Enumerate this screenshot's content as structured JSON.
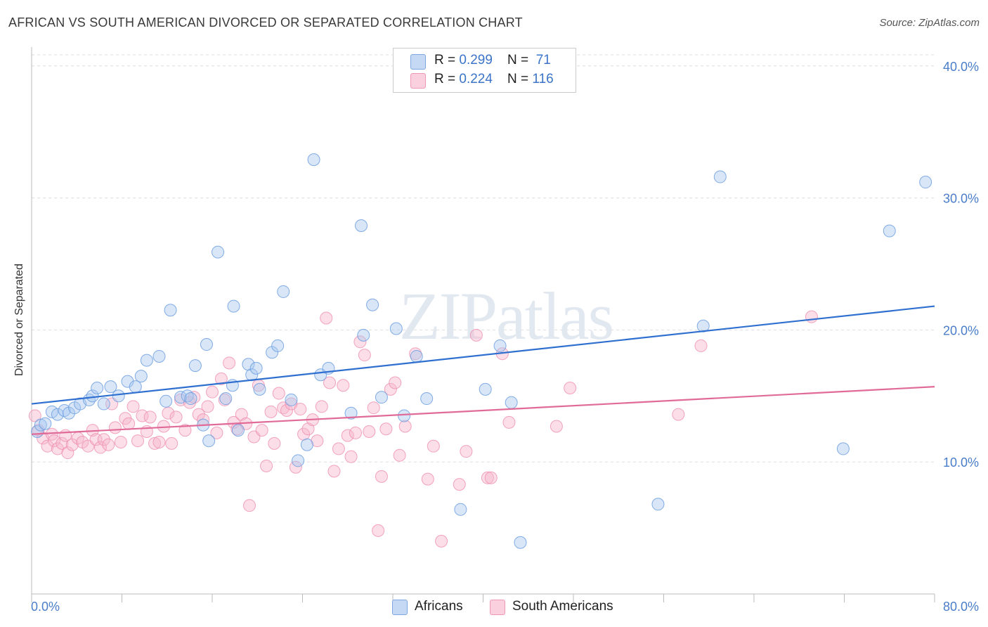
{
  "title": "AFRICAN VS SOUTH AMERICAN DIVORCED OR SEPARATED CORRELATION CHART",
  "source": "Source: ZipAtlas.com",
  "watermark": "ZIPatlas",
  "legend": {
    "rows": [
      {
        "r_label": "R = ",
        "r_value": "0.299",
        "n_label": "N = ",
        "n_value": " 71",
        "color": "#a9c7ef"
      },
      {
        "r_label": "R = ",
        "r_value": "0.224",
        "n_label": "N = ",
        "n_value": "116",
        "color": "#f6b6cc"
      }
    ]
  },
  "bottom_legend": [
    {
      "label": "Africans",
      "color": "#a9c7ef"
    },
    {
      "label": "South Americans",
      "color": "#f6b6cc"
    }
  ],
  "chart_data": {
    "type": "scatter",
    "title": "AFRICAN VS SOUTH AMERICAN DIVORCED OR SEPARATED CORRELATION CHART",
    "xlabel": "",
    "ylabel": "Divorced or Separated",
    "xlim": [
      0,
      80
    ],
    "ylim": [
      0,
      41
    ],
    "x_tick_labels": [
      "0.0%",
      "80.0%"
    ],
    "y_ticks": [
      10,
      20,
      30,
      40
    ],
    "y_tick_labels": [
      "10.0%",
      "20.0%",
      "30.0%",
      "40.0%"
    ],
    "grid": true,
    "legend_position": "top-center",
    "colors": {
      "africans": "#6d9fe0",
      "africans_fill": "#a9c7ef",
      "africans_line": "#2f6fd0",
      "south_americans": "#ef8fb0",
      "south_americans_fill": "#f6b6cc",
      "south_americans_line": "#e06b98"
    },
    "series": [
      {
        "name": "Africans",
        "trend": [
          [
            0,
            14.4
          ],
          [
            80,
            21.8
          ]
        ],
        "points": [
          [
            0.5,
            12.3
          ],
          [
            0.8,
            12.8
          ],
          [
            1.2,
            12.9
          ],
          [
            1.8,
            13.8
          ],
          [
            2.3,
            13.6
          ],
          [
            2.9,
            13.9
          ],
          [
            3.3,
            13.7
          ],
          [
            3.8,
            14.1
          ],
          [
            4.3,
            14.4
          ],
          [
            5.1,
            14.7
          ],
          [
            5.4,
            15.0
          ],
          [
            5.8,
            15.6
          ],
          [
            6.4,
            14.4
          ],
          [
            7.0,
            15.7
          ],
          [
            7.7,
            15.0
          ],
          [
            8.5,
            16.1
          ],
          [
            9.2,
            15.7
          ],
          [
            9.7,
            16.5
          ],
          [
            10.2,
            17.7
          ],
          [
            11.3,
            18.0
          ],
          [
            12.3,
            21.5
          ],
          [
            11.9,
            14.6
          ],
          [
            13.2,
            14.9
          ],
          [
            13.8,
            15.0
          ],
          [
            14.1,
            14.8
          ],
          [
            14.5,
            17.3
          ],
          [
            15.2,
            12.8
          ],
          [
            15.5,
            18.9
          ],
          [
            15.7,
            11.6
          ],
          [
            16.5,
            25.9
          ],
          [
            17.2,
            14.8
          ],
          [
            17.8,
            15.8
          ],
          [
            17.9,
            21.8
          ],
          [
            18.3,
            12.4
          ],
          [
            19.2,
            17.4
          ],
          [
            19.5,
            16.6
          ],
          [
            19.9,
            17.1
          ],
          [
            20.2,
            15.5
          ],
          [
            21.3,
            18.3
          ],
          [
            21.8,
            18.8
          ],
          [
            22.3,
            22.9
          ],
          [
            23.0,
            14.7
          ],
          [
            23.6,
            10.1
          ],
          [
            24.4,
            11.3
          ],
          [
            25.0,
            32.9
          ],
          [
            25.6,
            16.6
          ],
          [
            26.3,
            17.1
          ],
          [
            28.3,
            13.7
          ],
          [
            29.2,
            27.9
          ],
          [
            29.4,
            19.6
          ],
          [
            30.2,
            21.9
          ],
          [
            31.0,
            14.9
          ],
          [
            32.3,
            20.1
          ],
          [
            33.0,
            13.5
          ],
          [
            34.1,
            18.0
          ],
          [
            35.0,
            14.8
          ],
          [
            38.0,
            6.4
          ],
          [
            40.2,
            15.5
          ],
          [
            41.5,
            18.8
          ],
          [
            42.5,
            14.5
          ],
          [
            43.3,
            3.9
          ],
          [
            55.5,
            6.8
          ],
          [
            59.5,
            20.3
          ],
          [
            61.0,
            31.6
          ],
          [
            71.9,
            11.0
          ],
          [
            76.0,
            27.5
          ],
          [
            79.2,
            31.2
          ]
        ]
      },
      {
        "name": "South Americans",
        "trend": [
          [
            0,
            12.1
          ],
          [
            80,
            15.7
          ]
        ],
        "points": [
          [
            0.3,
            13.5
          ],
          [
            0.6,
            12.4
          ],
          [
            1.0,
            11.8
          ],
          [
            1.4,
            11.2
          ],
          [
            1.8,
            12.1
          ],
          [
            2.0,
            11.6
          ],
          [
            2.3,
            11.0
          ],
          [
            2.7,
            11.4
          ],
          [
            3.0,
            12.0
          ],
          [
            3.2,
            10.7
          ],
          [
            3.6,
            11.3
          ],
          [
            4.1,
            11.8
          ],
          [
            4.5,
            11.5
          ],
          [
            5.0,
            11.2
          ],
          [
            5.4,
            12.4
          ],
          [
            5.7,
            11.7
          ],
          [
            6.1,
            11.1
          ],
          [
            6.4,
            11.7
          ],
          [
            6.8,
            11.3
          ],
          [
            7.1,
            14.4
          ],
          [
            7.4,
            12.6
          ],
          [
            7.9,
            11.5
          ],
          [
            8.3,
            13.3
          ],
          [
            8.6,
            12.9
          ],
          [
            9.0,
            14.2
          ],
          [
            9.4,
            11.6
          ],
          [
            9.8,
            13.5
          ],
          [
            10.2,
            12.3
          ],
          [
            10.5,
            13.4
          ],
          [
            10.9,
            11.4
          ],
          [
            11.3,
            11.5
          ],
          [
            11.7,
            12.7
          ],
          [
            12.1,
            13.7
          ],
          [
            12.4,
            11.4
          ],
          [
            12.8,
            13.4
          ],
          [
            13.2,
            14.7
          ],
          [
            13.6,
            12.4
          ],
          [
            14.0,
            14.5
          ],
          [
            14.4,
            14.9
          ],
          [
            14.8,
            13.6
          ],
          [
            15.2,
            13.2
          ],
          [
            15.6,
            14.2
          ],
          [
            16.0,
            15.3
          ],
          [
            16.4,
            12.2
          ],
          [
            16.8,
            16.3
          ],
          [
            17.1,
            14.7
          ],
          [
            17.5,
            17.5
          ],
          [
            17.9,
            13.0
          ],
          [
            18.2,
            12.5
          ],
          [
            18.6,
            13.6
          ],
          [
            19.0,
            12.9
          ],
          [
            19.3,
            6.7
          ],
          [
            19.7,
            11.9
          ],
          [
            20.1,
            15.8
          ],
          [
            20.4,
            12.4
          ],
          [
            20.8,
            9.7
          ],
          [
            21.2,
            13.8
          ],
          [
            21.5,
            11.4
          ],
          [
            21.9,
            15.2
          ],
          [
            22.3,
            14.1
          ],
          [
            22.6,
            13.9
          ],
          [
            23.0,
            14.4
          ],
          [
            23.4,
            9.6
          ],
          [
            23.8,
            14.0
          ],
          [
            24.1,
            12.1
          ],
          [
            24.5,
            12.5
          ],
          [
            24.9,
            13.2
          ],
          [
            25.3,
            11.6
          ],
          [
            25.7,
            14.2
          ],
          [
            26.1,
            20.9
          ],
          [
            26.4,
            16.0
          ],
          [
            26.8,
            9.3
          ],
          [
            27.2,
            11.0
          ],
          [
            27.6,
            15.8
          ],
          [
            28.0,
            12.0
          ],
          [
            28.3,
            10.4
          ],
          [
            28.7,
            12.2
          ],
          [
            29.1,
            19.1
          ],
          [
            29.5,
            18.1
          ],
          [
            29.9,
            12.3
          ],
          [
            30.3,
            14.1
          ],
          [
            30.7,
            4.8
          ],
          [
            31.0,
            8.9
          ],
          [
            31.4,
            12.5
          ],
          [
            31.8,
            15.5
          ],
          [
            32.2,
            16.0
          ],
          [
            32.6,
            10.5
          ],
          [
            33.1,
            12.7
          ],
          [
            34.0,
            18.2
          ],
          [
            35.1,
            8.7
          ],
          [
            35.6,
            11.2
          ],
          [
            36.3,
            4.0
          ],
          [
            37.9,
            8.3
          ],
          [
            38.5,
            10.8
          ],
          [
            39.4,
            19.6
          ],
          [
            40.4,
            8.8
          ],
          [
            40.7,
            8.8
          ],
          [
            41.7,
            18.2
          ],
          [
            42.3,
            13.0
          ],
          [
            46.5,
            12.7
          ],
          [
            47.7,
            15.6
          ],
          [
            57.3,
            13.6
          ],
          [
            59.3,
            18.8
          ],
          [
            69.1,
            21.0
          ]
        ]
      }
    ]
  }
}
